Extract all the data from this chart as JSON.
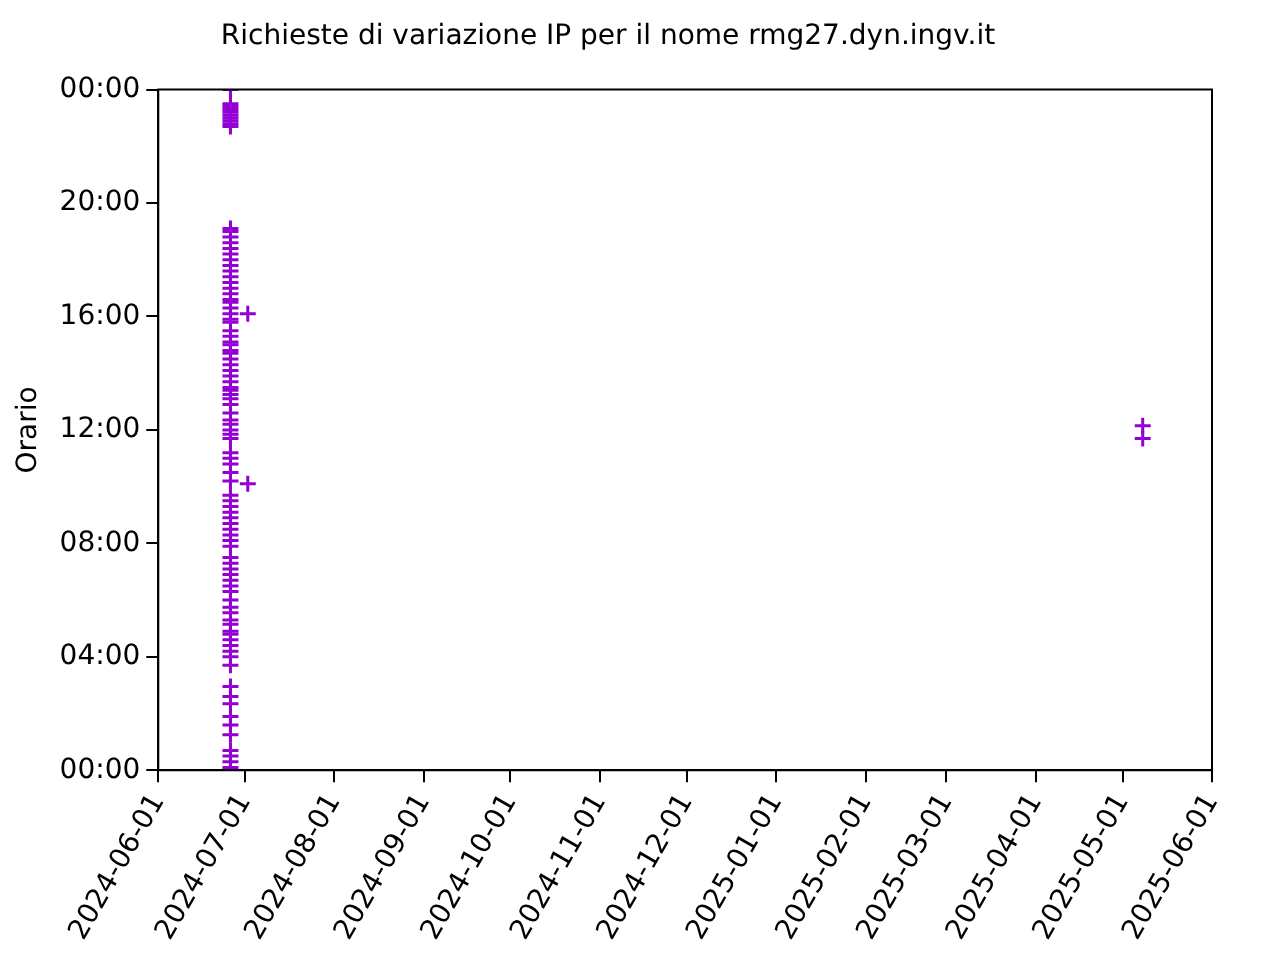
{
  "chart_data": {
    "type": "scatter",
    "title": "Richieste di variazione IP per il nome rmg27.dyn.ingv.it",
    "ylabel": "Orario",
    "marker": "cross",
    "grid": false,
    "legend": false,
    "xlim": [
      "2024-06-01",
      "2025-06-01"
    ],
    "xticks": [
      "2024-06-01",
      "2024-07-01",
      "2024-08-01",
      "2024-09-01",
      "2024-10-01",
      "2024-11-01",
      "2024-12-01",
      "2025-01-01",
      "2025-02-01",
      "2025-03-01",
      "2025-04-01",
      "2025-05-01",
      "2025-06-01"
    ],
    "ylim": [
      0,
      24
    ],
    "yticks": [
      {
        "value": 0,
        "label": "00:00"
      },
      {
        "value": 4,
        "label": "04:00"
      },
      {
        "value": 8,
        "label": "08:00"
      },
      {
        "value": 12,
        "label": "12:00"
      },
      {
        "value": 16,
        "label": "16:00"
      },
      {
        "value": 20,
        "label": "20:00"
      },
      {
        "value": 24,
        "label": "00:00"
      }
    ],
    "series": [
      {
        "color": "#9400d3",
        "x": [
          "2024-06-26",
          "2024-06-26",
          "2024-06-26",
          "2024-06-26",
          "2024-06-26",
          "2024-06-26",
          "2024-06-26",
          "2024-06-26",
          "2024-06-26",
          "2024-06-26",
          "2024-06-26",
          "2024-06-26",
          "2024-06-26",
          "2024-06-26",
          "2024-06-26",
          "2024-06-26",
          "2024-06-26",
          "2024-06-26",
          "2024-06-26",
          "2024-06-26",
          "2024-06-26",
          "2024-06-26",
          "2024-06-26",
          "2024-06-26",
          "2024-06-26",
          "2024-06-26",
          "2024-06-26",
          "2024-06-26",
          "2024-06-26",
          "2024-06-26",
          "2024-06-26",
          "2024-06-26",
          "2024-06-26",
          "2024-06-26",
          "2024-06-26",
          "2024-06-26",
          "2024-06-26",
          "2024-06-26",
          "2024-06-26",
          "2024-06-26",
          "2024-06-26",
          "2024-06-26",
          "2024-06-26",
          "2024-06-26",
          "2024-06-26",
          "2024-06-26",
          "2024-06-26",
          "2024-06-26",
          "2024-06-26",
          "2024-06-26",
          "2024-06-26",
          "2024-06-26",
          "2024-06-26",
          "2024-06-26",
          "2024-06-26",
          "2024-06-26",
          "2024-06-26",
          "2024-06-26",
          "2024-06-26",
          "2024-06-26",
          "2024-06-26",
          "2024-06-26",
          "2024-06-26",
          "2024-06-26",
          "2024-06-26",
          "2024-06-26",
          "2024-06-26",
          "2024-06-26",
          "2024-06-26",
          "2024-06-26",
          "2024-06-26",
          "2024-06-26",
          "2024-06-26",
          "2024-06-26",
          "2024-06-26",
          "2024-06-26",
          "2024-06-26",
          "2024-06-26",
          "2024-06-26",
          "2024-06-26",
          "2024-06-26",
          "2024-06-26",
          "2024-06-26",
          "2024-06-26",
          "2024-06-26",
          "2024-06-26",
          "2024-06-26",
          "2024-06-26",
          "2024-06-26",
          "2024-06-26",
          "2024-06-26",
          "2024-06-26",
          "2024-06-26",
          "2024-06-26",
          "2024-06-26",
          "2024-06-26",
          "2024-07-02",
          "2024-07-02",
          "2025-05-08",
          "2025-05-08"
        ],
        "values": [
          24.0,
          23.5,
          23.4,
          23.3,
          23.2,
          23.1,
          23.0,
          22.9,
          22.8,
          22.7,
          19.1,
          19.0,
          18.8,
          18.6,
          18.4,
          18.2,
          18.0,
          17.8,
          17.6,
          17.4,
          17.2,
          17.0,
          16.8,
          16.6,
          16.5,
          16.3,
          16.1,
          15.9,
          15.8,
          15.5,
          15.3,
          15.1,
          15.0,
          14.8,
          14.7,
          14.5,
          14.3,
          14.1,
          13.9,
          13.7,
          13.5,
          13.4,
          13.25,
          13.1,
          12.9,
          12.6,
          12.35,
          12.2,
          12.0,
          11.85,
          11.7,
          11.2,
          11.0,
          10.8,
          10.5,
          10.2,
          9.7,
          9.5,
          9.3,
          9.1,
          8.9,
          8.7,
          8.5,
          8.3,
          8.1,
          7.9,
          7.5,
          7.3,
          7.1,
          6.9,
          6.7,
          6.5,
          6.3,
          6.0,
          5.75,
          5.55,
          5.3,
          5.15,
          4.9,
          4.8,
          4.6,
          4.4,
          4.2,
          4.0,
          3.7,
          2.95,
          2.6,
          2.35,
          1.9,
          1.6,
          1.25,
          0.7,
          0.5,
          0.3,
          0.1,
          0.0,
          16.1,
          10.1,
          12.15,
          11.7
        ]
      }
    ]
  }
}
